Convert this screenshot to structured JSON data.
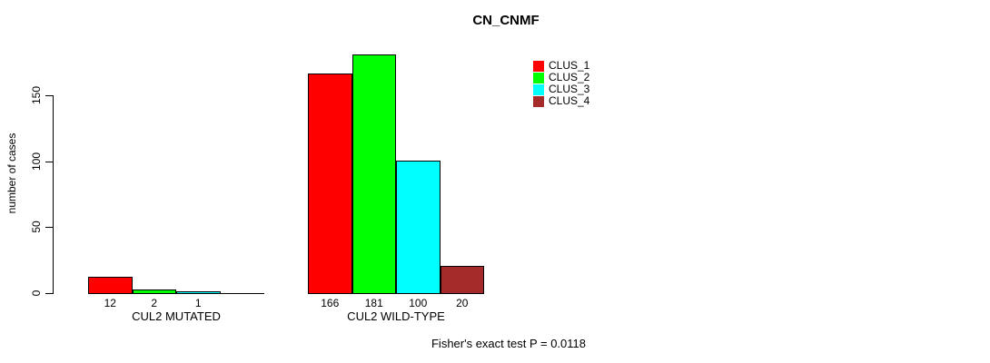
{
  "chart_data": {
    "type": "bar",
    "title": "CN_CNMF",
    "ylabel": "number of cases",
    "xlabel": "",
    "yticks": [
      0,
      50,
      100,
      150
    ],
    "ylim": [
      0,
      150
    ],
    "grid": false,
    "legend_position": "top-right",
    "categories": [
      "CUL2 MUTATED",
      "CUL2 WILD-TYPE"
    ],
    "series": [
      {
        "name": "CLUS_1",
        "color": "#FF0000",
        "values": [
          12,
          166
        ]
      },
      {
        "name": "CLUS_2",
        "color": "#00FF00",
        "values": [
          2,
          181
        ]
      },
      {
        "name": "CLUS_3",
        "color": "#00FFFF",
        "values": [
          1,
          100
        ]
      },
      {
        "name": "CLUS_4",
        "color": "#A52A2A",
        "values": [
          0,
          20
        ]
      }
    ],
    "bar_value_labels": [
      [
        "12",
        "2",
        "1",
        ""
      ],
      [
        "166",
        "181",
        "100",
        "20"
      ]
    ],
    "footnote": "Fisher's exact test P = 0.0118"
  }
}
